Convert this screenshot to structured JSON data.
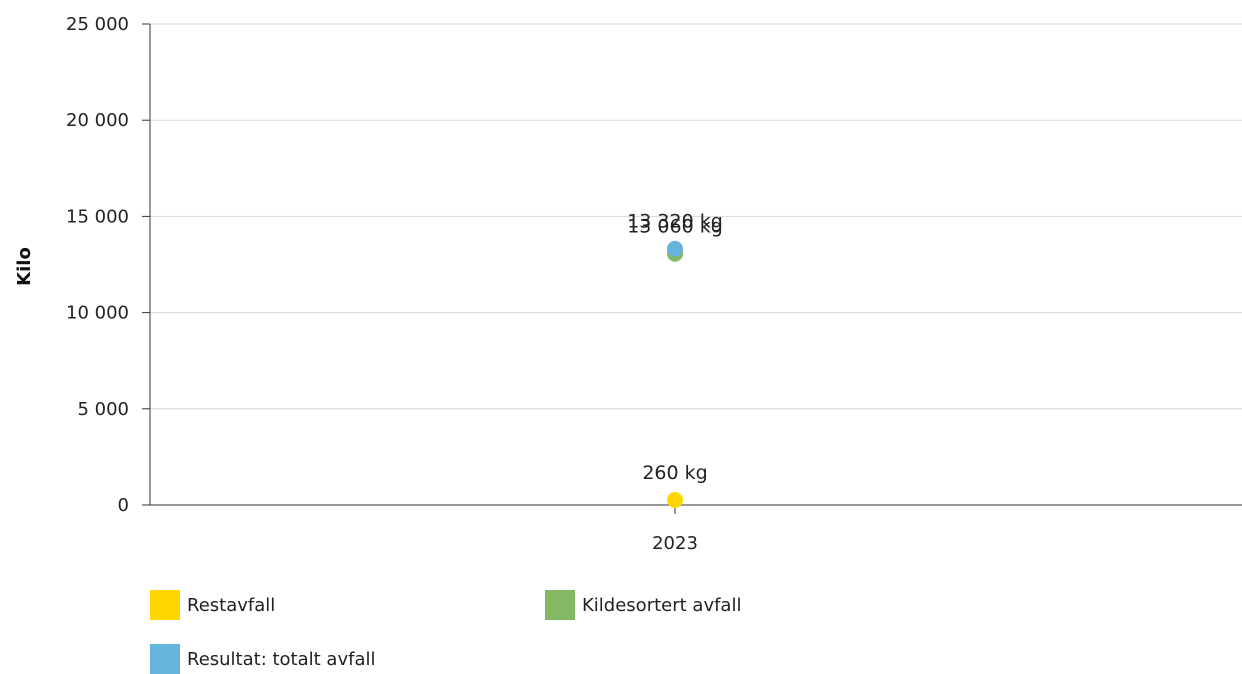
{
  "chart_data": {
    "type": "scatter",
    "categories": [
      "2023"
    ],
    "ylabel": "Kilo",
    "xlabel": "",
    "ylim": [
      0,
      25000
    ],
    "yticks": [
      0,
      5000,
      10000,
      15000,
      20000,
      25000
    ],
    "ytick_labels": [
      "0",
      "5 000",
      "10 000",
      "15 000",
      "20 000",
      "25 000"
    ],
    "grid": true,
    "legend_position": "bottom",
    "series": [
      {
        "name": "Restavfall",
        "color": "#FFD500",
        "values": [
          260
        ],
        "labels": [
          "260 kg"
        ]
      },
      {
        "name": "Kildesortert avfall",
        "color": "#82B962",
        "values": [
          13060
        ],
        "labels": [
          "13 060 kg"
        ]
      },
      {
        "name": "Resultat: totalt avfall",
        "color": "#66B3DC",
        "values": [
          13320
        ],
        "labels": [
          "13 320 kg"
        ]
      }
    ]
  }
}
